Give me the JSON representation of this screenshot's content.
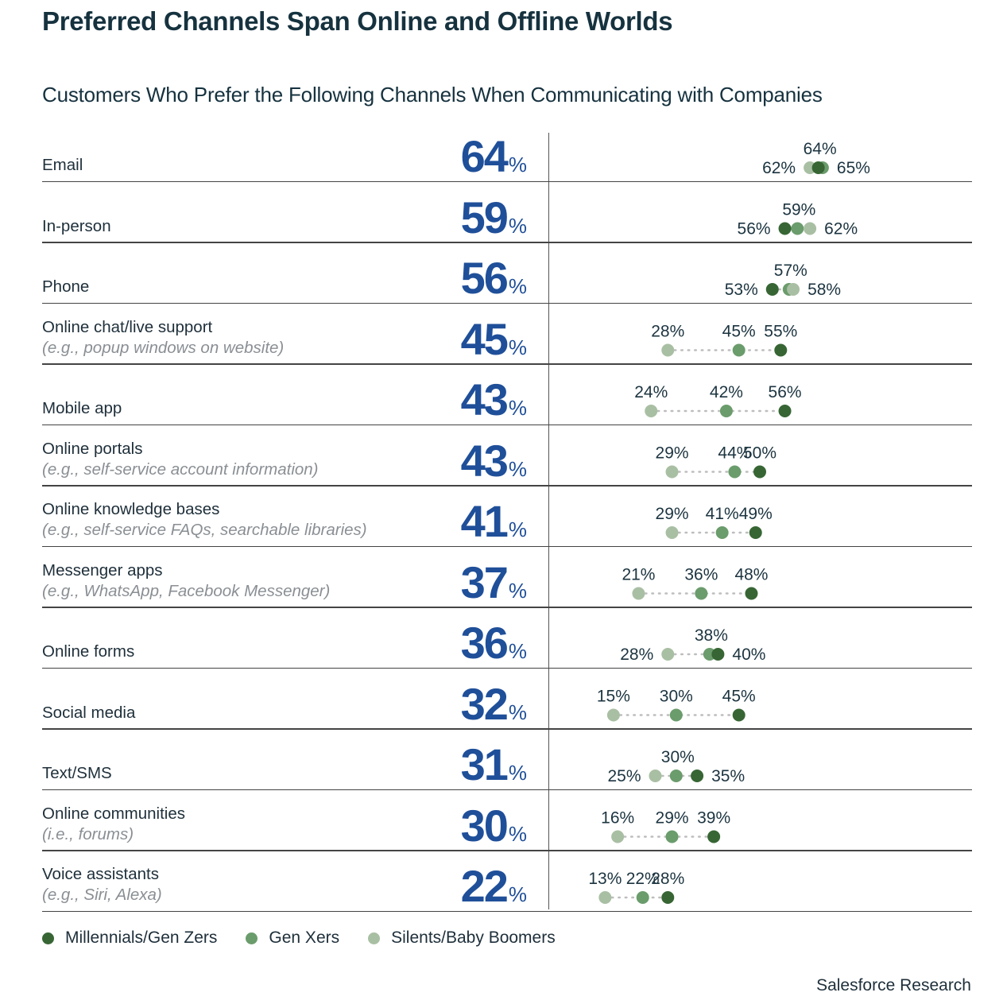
{
  "title": "Preferred Channels Span Online and Offline Worlds",
  "subtitle": "Customers Who Prefer the Following Channels When Communicating with Companies",
  "source": "Salesforce Research",
  "colors": {
    "millennials": "#376634",
    "genx": "#6b9c6c",
    "silents": "#a9bfa3",
    "bignum": "#1f4f99",
    "connector": "#bdbdbd"
  },
  "legend": [
    {
      "key": "millennials",
      "label": "Millennials/Gen Zers"
    },
    {
      "key": "genx",
      "label": "Gen Xers"
    },
    {
      "key": "silents",
      "label": "Silents/Baby Boomers"
    }
  ],
  "chart_data": {
    "type": "scatter",
    "title": "Preferred Channels Span Online and Offline Worlds",
    "subtitle": "Customers Who Prefer the Following Channels When Communicating with Companies",
    "xlabel": "",
    "ylabel": "",
    "unit": "%",
    "legend_position": "bottom-left",
    "grid": false,
    "categories": [
      "Email",
      "In-person",
      "Phone",
      "Online chat/live support",
      "Mobile app",
      "Online portals",
      "Online knowledge bases",
      "Messenger apps",
      "Online forms",
      "Social media",
      "Text/SMS",
      "Online communities",
      "Voice assistants"
    ],
    "series": [
      {
        "name": "Millennials/Gen Zers",
        "values": [
          64,
          56,
          53,
          55,
          56,
          50,
          49,
          48,
          40,
          45,
          35,
          39,
          28
        ]
      },
      {
        "name": "Gen Xers",
        "values": [
          65,
          59,
          57,
          45,
          42,
          44,
          41,
          36,
          38,
          30,
          30,
          29,
          22
        ]
      },
      {
        "name": "Silents/Baby Boomers",
        "values": [
          62,
          62,
          58,
          28,
          24,
          29,
          29,
          21,
          28,
          15,
          25,
          16,
          13
        ]
      }
    ],
    "rows": [
      {
        "label": "Email",
        "sub": "",
        "total": "64",
        "mil": 64,
        "genx": 65,
        "sil": 62,
        "labels": {
          "top": "64%",
          "left": "62%",
          "right": "65%"
        }
      },
      {
        "label": "In-person",
        "sub": "",
        "total": "59",
        "mil": 56,
        "genx": 59,
        "sil": 62,
        "labels": {
          "top": "59%",
          "left": "56%",
          "right": "62%"
        }
      },
      {
        "label": "Phone",
        "sub": "",
        "total": "56",
        "mil": 53,
        "genx": 57,
        "sil": 58,
        "labels": {
          "top": "57%",
          "left": "53%",
          "right": "58%"
        }
      },
      {
        "label": "Online chat/live support",
        "sub": "(e.g., popup windows on website)",
        "total": "45",
        "mil": 55,
        "genx": 45,
        "sil": 28
      },
      {
        "label": "Mobile app",
        "sub": "",
        "total": "43",
        "mil": 56,
        "genx": 42,
        "sil": 24
      },
      {
        "label": "Online portals",
        "sub": "(e.g., self-service account information)",
        "total": "43",
        "mil": 50,
        "genx": 44,
        "sil": 29
      },
      {
        "label": "Online knowledge bases",
        "sub": "(e.g., self-service FAQs, searchable libraries)",
        "total": "41",
        "mil": 49,
        "genx": 41,
        "sil": 29
      },
      {
        "label": "Messenger apps",
        "sub": "(e.g., WhatsApp, Facebook Messenger)",
        "total": "37",
        "mil": 48,
        "genx": 36,
        "sil": 21
      },
      {
        "label": "Online forms",
        "sub": "",
        "total": "36",
        "mil": 40,
        "genx": 38,
        "sil": 28,
        "labels": {
          "top": "38%",
          "left": "28%",
          "right": "40%"
        }
      },
      {
        "label": "Social media",
        "sub": "",
        "total": "32",
        "mil": 45,
        "genx": 30,
        "sil": 15
      },
      {
        "label": "Text/SMS",
        "sub": "",
        "total": "31",
        "mil": 35,
        "genx": 30,
        "sil": 25,
        "labels": {
          "top": "30%",
          "left": "25%",
          "right": "35%"
        }
      },
      {
        "label": "Online communities",
        "sub": "(i.e., forums)",
        "total": "30",
        "mil": 39,
        "genx": 29,
        "sil": 16
      },
      {
        "label": "Voice assistants",
        "sub": "(e.g., Siri, Alexa)",
        "total": "22",
        "mil": 28,
        "genx": 22,
        "sil": 13
      }
    ]
  }
}
